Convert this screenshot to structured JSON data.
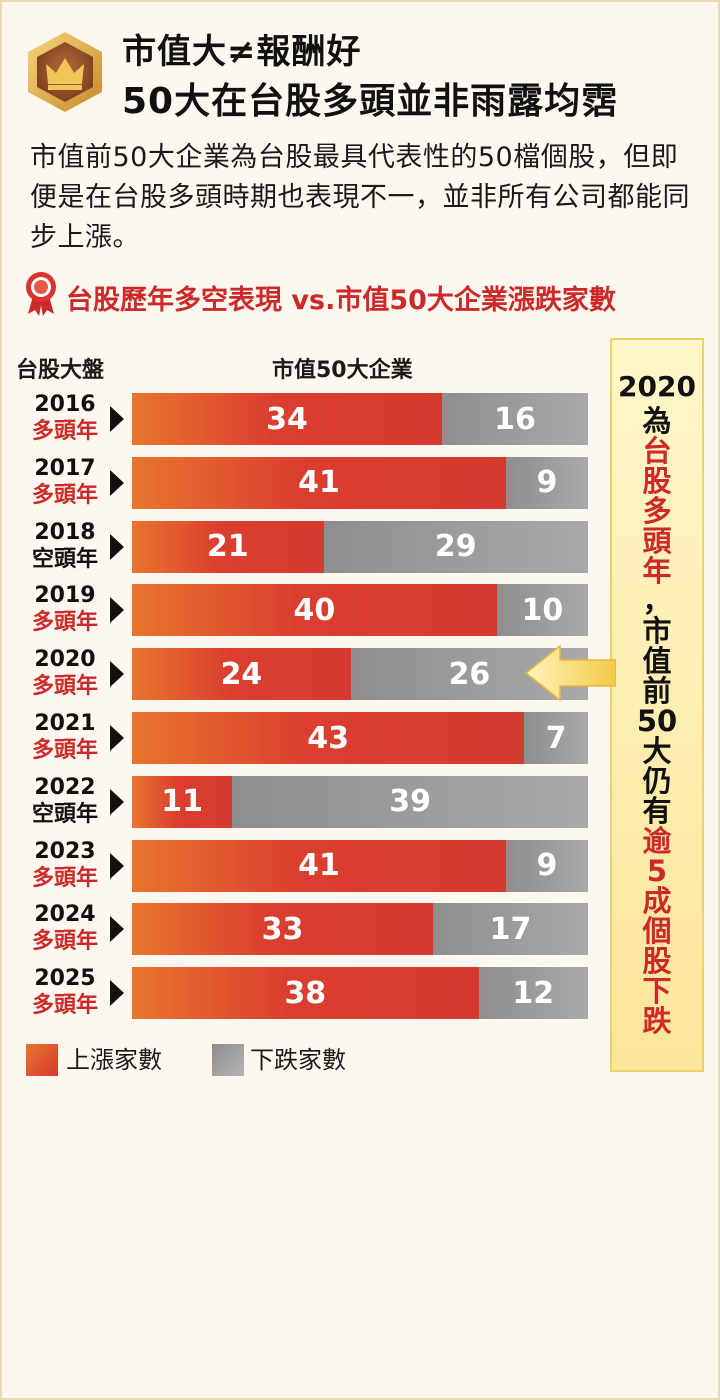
{
  "header": {
    "title_line1": "市值大≠報酬好",
    "title_line2": "50大在台股多頭並非雨露均霑",
    "intro": "市值前50大企業為台股最具代表性的50檔個股，但即便是在台股多頭時期也表現不一，並非所有公司都能同步上漲。"
  },
  "section": {
    "title": "台股歷年多空表現 vs.市值50大企業漲跌家數"
  },
  "columns": {
    "left": "台股大盤",
    "right": "市值50大企業"
  },
  "chart_data": {
    "type": "bar",
    "stacked": true,
    "orientation": "horizontal",
    "title": "台股歷年多空表現 vs.市值50大企業漲跌家數",
    "total": 50,
    "categories": [
      "2016",
      "2017",
      "2018",
      "2019",
      "2020",
      "2021",
      "2022",
      "2023",
      "2024",
      "2025"
    ],
    "market_state": [
      "多頭年",
      "多頭年",
      "空頭年",
      "多頭年",
      "多頭年",
      "多頭年",
      "空頭年",
      "多頭年",
      "多頭年",
      "多頭年"
    ],
    "series": [
      {
        "name": "上漲家數",
        "values": [
          34,
          41,
          21,
          40,
          24,
          43,
          11,
          41,
          33,
          38
        ]
      },
      {
        "name": "下跌家數",
        "values": [
          16,
          9,
          29,
          10,
          26,
          7,
          39,
          9,
          17,
          12
        ]
      }
    ],
    "legend": [
      "上漲家數",
      "下跌家數"
    ]
  },
  "side_note": {
    "year": "2020",
    "chars": [
      {
        "ch": "為",
        "tone": "black"
      },
      {
        "ch": "台",
        "tone": "red"
      },
      {
        "ch": "股",
        "tone": "red"
      },
      {
        "ch": "多",
        "tone": "red"
      },
      {
        "ch": "頭",
        "tone": "red"
      },
      {
        "ch": "年",
        "tone": "red"
      },
      {
        "ch": "，",
        "tone": "black"
      },
      {
        "ch": "市",
        "tone": "black"
      },
      {
        "ch": "值",
        "tone": "black"
      },
      {
        "ch": "前",
        "tone": "black"
      },
      {
        "ch": "50",
        "tone": "black"
      },
      {
        "ch": "大",
        "tone": "black"
      },
      {
        "ch": "仍",
        "tone": "black"
      },
      {
        "ch": "有",
        "tone": "black"
      },
      {
        "ch": "逾",
        "tone": "red"
      },
      {
        "ch": "5",
        "tone": "red"
      },
      {
        "ch": "成",
        "tone": "red"
      },
      {
        "ch": "個",
        "tone": "red"
      },
      {
        "ch": "股",
        "tone": "red"
      },
      {
        "ch": "下",
        "tone": "red"
      },
      {
        "ch": "跌",
        "tone": "red"
      }
    ]
  },
  "colors": {
    "up": "#d53a30",
    "down": "#9a9a9a",
    "accent_red": "#cc2a2a",
    "panel_border": "#f0cf63"
  },
  "icons": {
    "badge": "crown-badge-icon",
    "section": "ribbon-medal-icon",
    "pointer": "arrow-left-icon"
  }
}
